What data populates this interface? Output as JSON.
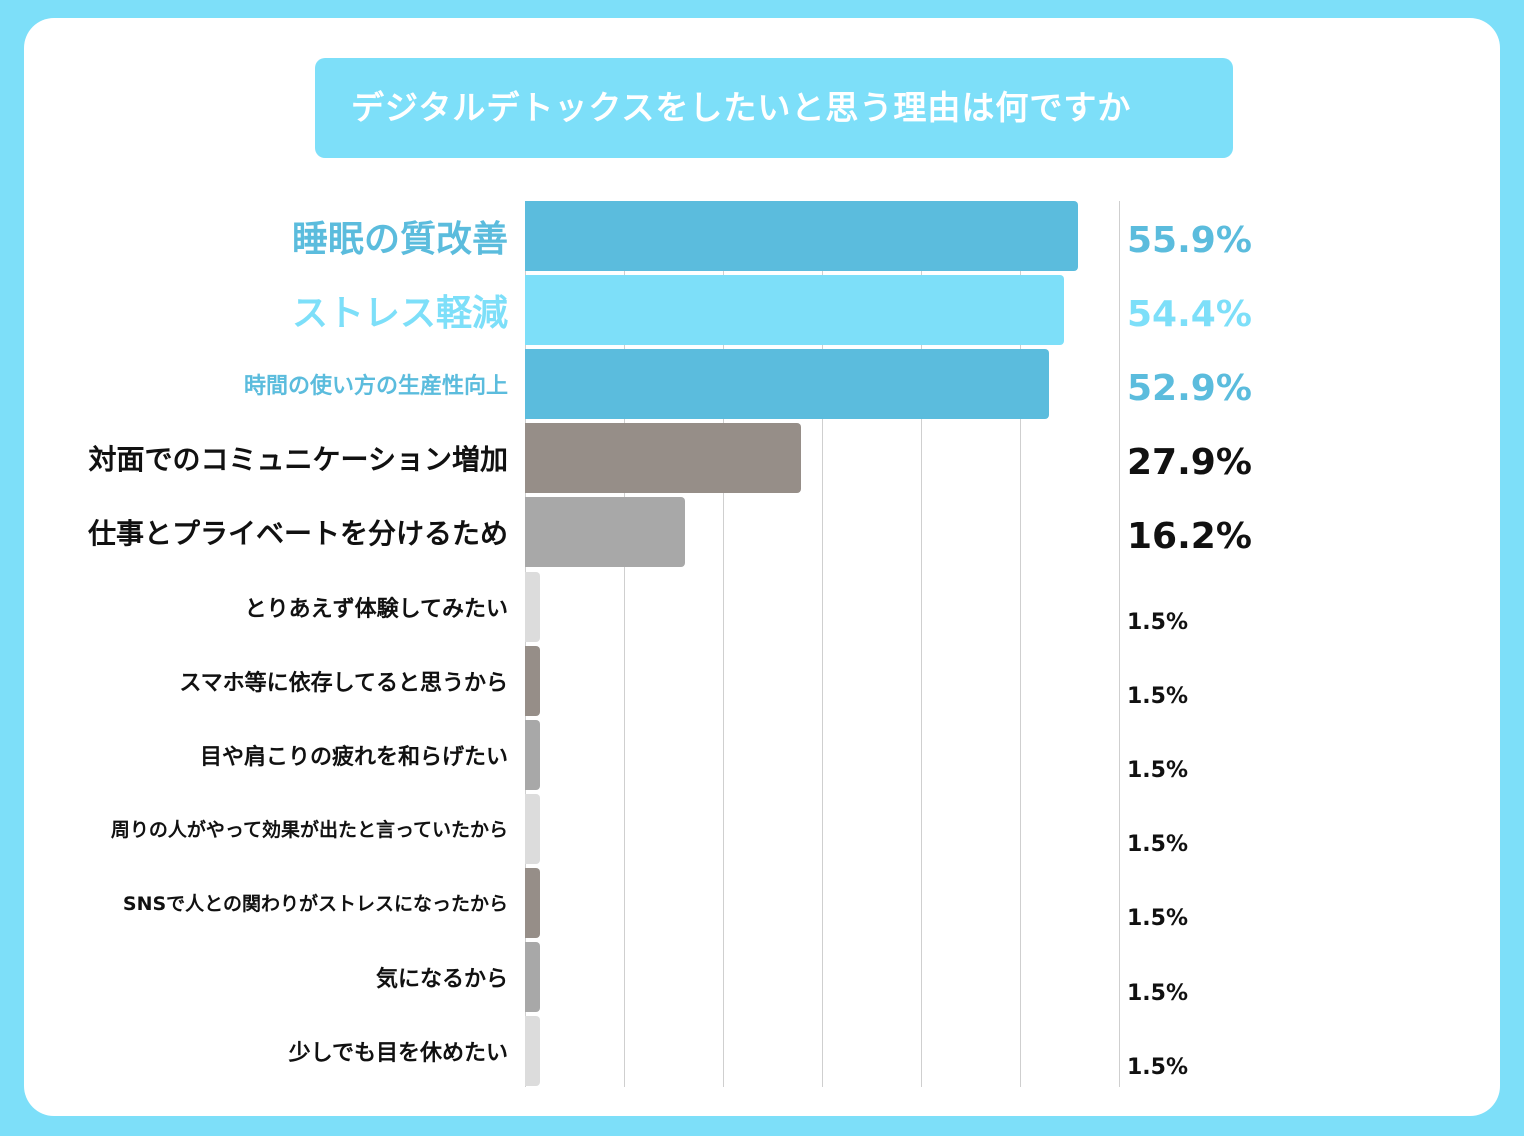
{
  "chart_data": {
    "type": "bar",
    "orientation": "horizontal",
    "title": "デジタルデトックスをしたいと思う理由は何ですか",
    "categories": [
      "睡眠の質改善",
      "ストレス軽減",
      "時間の使い方の生産性向上",
      "対面でのコミュニケーション増加",
      "仕事とプライベートを分けるため",
      "とりあえず体験してみたい",
      "スマホ等に依存してると思うから",
      "目や肩こりの疲れを和らげたい",
      "周りの人がやって効果が出たと言っていたから",
      "SNSで人との関わりがストレスになったから",
      "気になるから",
      "少しでも目を休めたい"
    ],
    "values": [
      55.9,
      54.4,
      52.9,
      27.9,
      16.2,
      1.5,
      1.5,
      1.5,
      1.5,
      1.5,
      1.5,
      1.5
    ],
    "value_labels": [
      "55.9%",
      "54.4%",
      "52.9%",
      "27.9%",
      "16.2%",
      "1.5%",
      "1.5%",
      "1.5%",
      "1.5%",
      "1.5%",
      "1.5%",
      "1.5%"
    ],
    "bar_colors": [
      "#5bbcdd",
      "#7ddff9",
      "#5bbcdd",
      "#968e88",
      "#a8a8a8",
      "#dcdcdc",
      "#968e88",
      "#a8a8a8",
      "#dcdcdc",
      "#968e88",
      "#a8a8a8",
      "#dcdcdc"
    ],
    "label_colors": [
      "#5bbcdd",
      "#7ddff9",
      "#5bbcdd",
      "#111111",
      "#111111",
      "#111111",
      "#111111",
      "#111111",
      "#111111",
      "#111111",
      "#111111",
      "#111111"
    ],
    "xlim": [
      0,
      60
    ],
    "grid": true,
    "unit": "%"
  }
}
